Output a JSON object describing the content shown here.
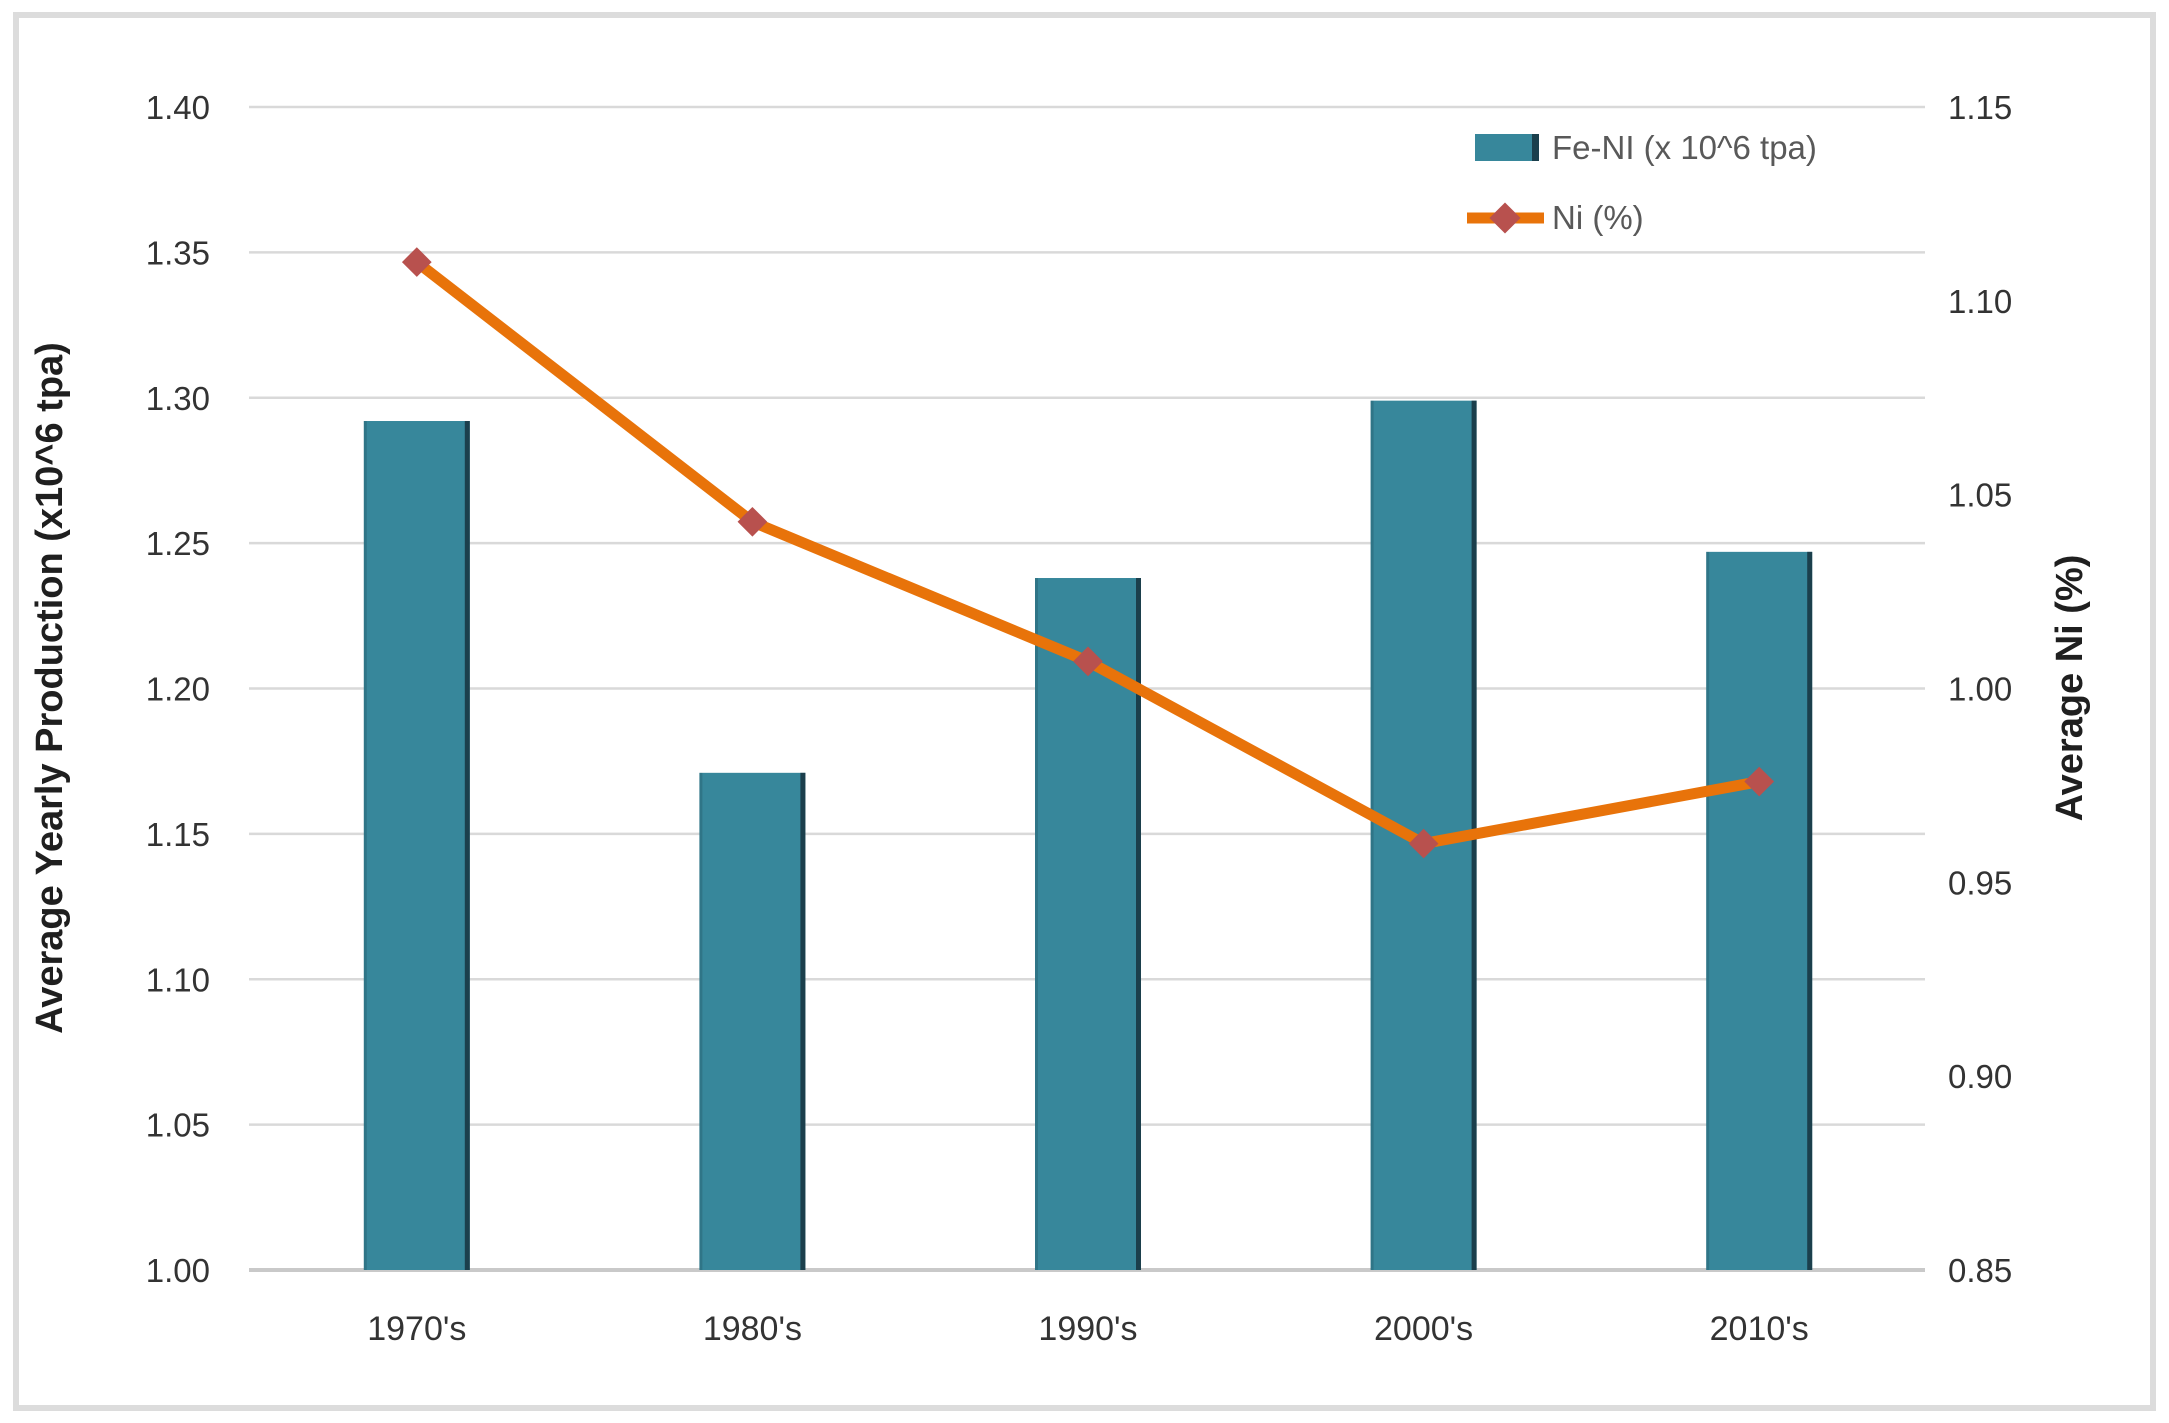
{
  "chart_data": {
    "type": "combo-bar-line",
    "categories": [
      "1970's",
      "1980's",
      "1990's",
      "2000's",
      "2010's"
    ],
    "series": [
      {
        "name": "Fe-NI (x 10^6 tpa)",
        "type": "bar",
        "axis": "left",
        "values": [
          1.292,
          1.171,
          1.238,
          1.299,
          1.247
        ]
      },
      {
        "name": "Ni (%)",
        "type": "line",
        "axis": "right",
        "marker": "diamond",
        "values": [
          1.11,
          1.043,
          1.007,
          0.96,
          0.976
        ]
      }
    ],
    "left_axis": {
      "title": "Average Yearly Production (x10^6 tpa)",
      "min": 1.0,
      "max": 1.4,
      "step": 0.05,
      "tick_labels": [
        "1.40",
        "1.35",
        "1.30",
        "1.25",
        "1.20",
        "1.15",
        "1.10",
        "1.05",
        "1.00"
      ]
    },
    "right_axis": {
      "title": "Average Ni (%)",
      "min": 0.85,
      "max": 1.15,
      "step": 0.05,
      "tick_labels": [
        "1.15",
        "1.10",
        "1.05",
        "1.00",
        "0.95",
        "0.90",
        "0.85"
      ]
    },
    "grid": true,
    "legend_position": "top-right",
    "colors": {
      "bar_fill": "#37879B",
      "bar_edge_dark": "#16333E",
      "line": "#E8730A",
      "marker": "#B8514E",
      "gridline": "#D9D9D9",
      "axis_line": "#C9C9C9",
      "tick_text": "#333333",
      "title_text": "#1F1F1F",
      "legend_text": "#595959",
      "frame_border": "#DCDCDC"
    }
  }
}
